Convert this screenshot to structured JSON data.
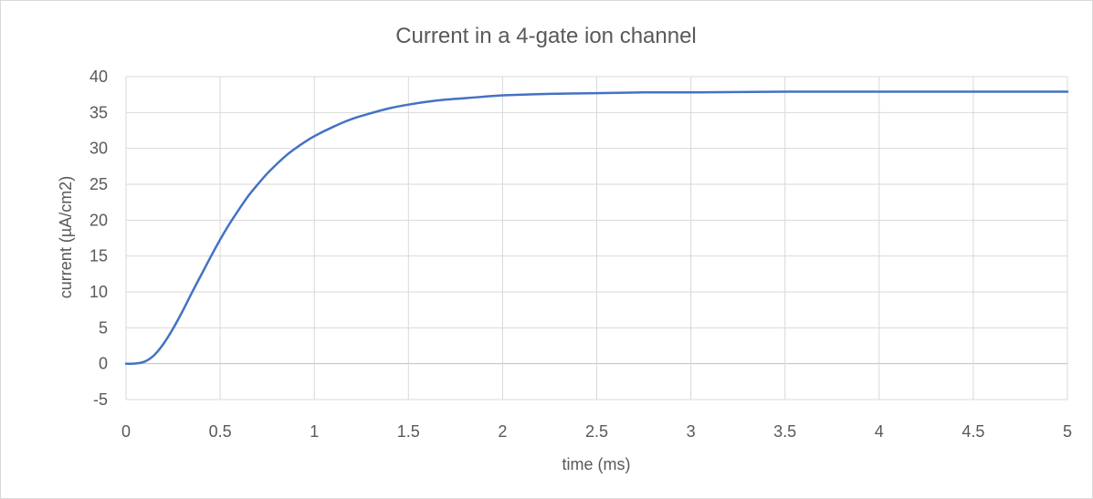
{
  "chart_data": {
    "type": "line",
    "title": "Current in a 4-gate ion channel",
    "xlabel": "time (ms)",
    "ylabel": "current (µA/cm2)",
    "xlim": [
      0,
      5
    ],
    "ylim": [
      -5,
      40
    ],
    "x_ticks": [
      "0",
      "0.5",
      "1",
      "1.5",
      "2",
      "2.5",
      "3",
      "3.5",
      "4",
      "4.5",
      "5"
    ],
    "y_ticks": [
      "40",
      "35",
      "30",
      "25",
      "20",
      "15",
      "10",
      "5",
      "0",
      "-5"
    ],
    "grid": true,
    "legend": "none",
    "series": [
      {
        "color": "#4472c4",
        "x": [
          0,
          0.05,
          0.1,
          0.15,
          0.2,
          0.25,
          0.3,
          0.35,
          0.4,
          0.45,
          0.5,
          0.55,
          0.6,
          0.65,
          0.7,
          0.75,
          0.8,
          0.85,
          0.9,
          0.95,
          1.0,
          1.1,
          1.2,
          1.3,
          1.4,
          1.5,
          1.6,
          1.7,
          1.8,
          1.9,
          2.0,
          2.25,
          2.5,
          2.75,
          3.0,
          3.5,
          4.0,
          4.5,
          5.0
        ],
        "y": [
          0,
          0.02,
          0.3,
          1.2,
          2.8,
          4.9,
          7.3,
          9.9,
          12.4,
          14.9,
          17.3,
          19.5,
          21.5,
          23.4,
          25.0,
          26.5,
          27.8,
          29.0,
          30.0,
          30.9,
          31.7,
          33.0,
          34.1,
          34.9,
          35.6,
          36.1,
          36.5,
          36.8,
          37.0,
          37.2,
          37.4,
          37.6,
          37.7,
          37.8,
          37.8,
          37.9,
          37.9,
          37.9,
          37.9
        ]
      }
    ]
  }
}
